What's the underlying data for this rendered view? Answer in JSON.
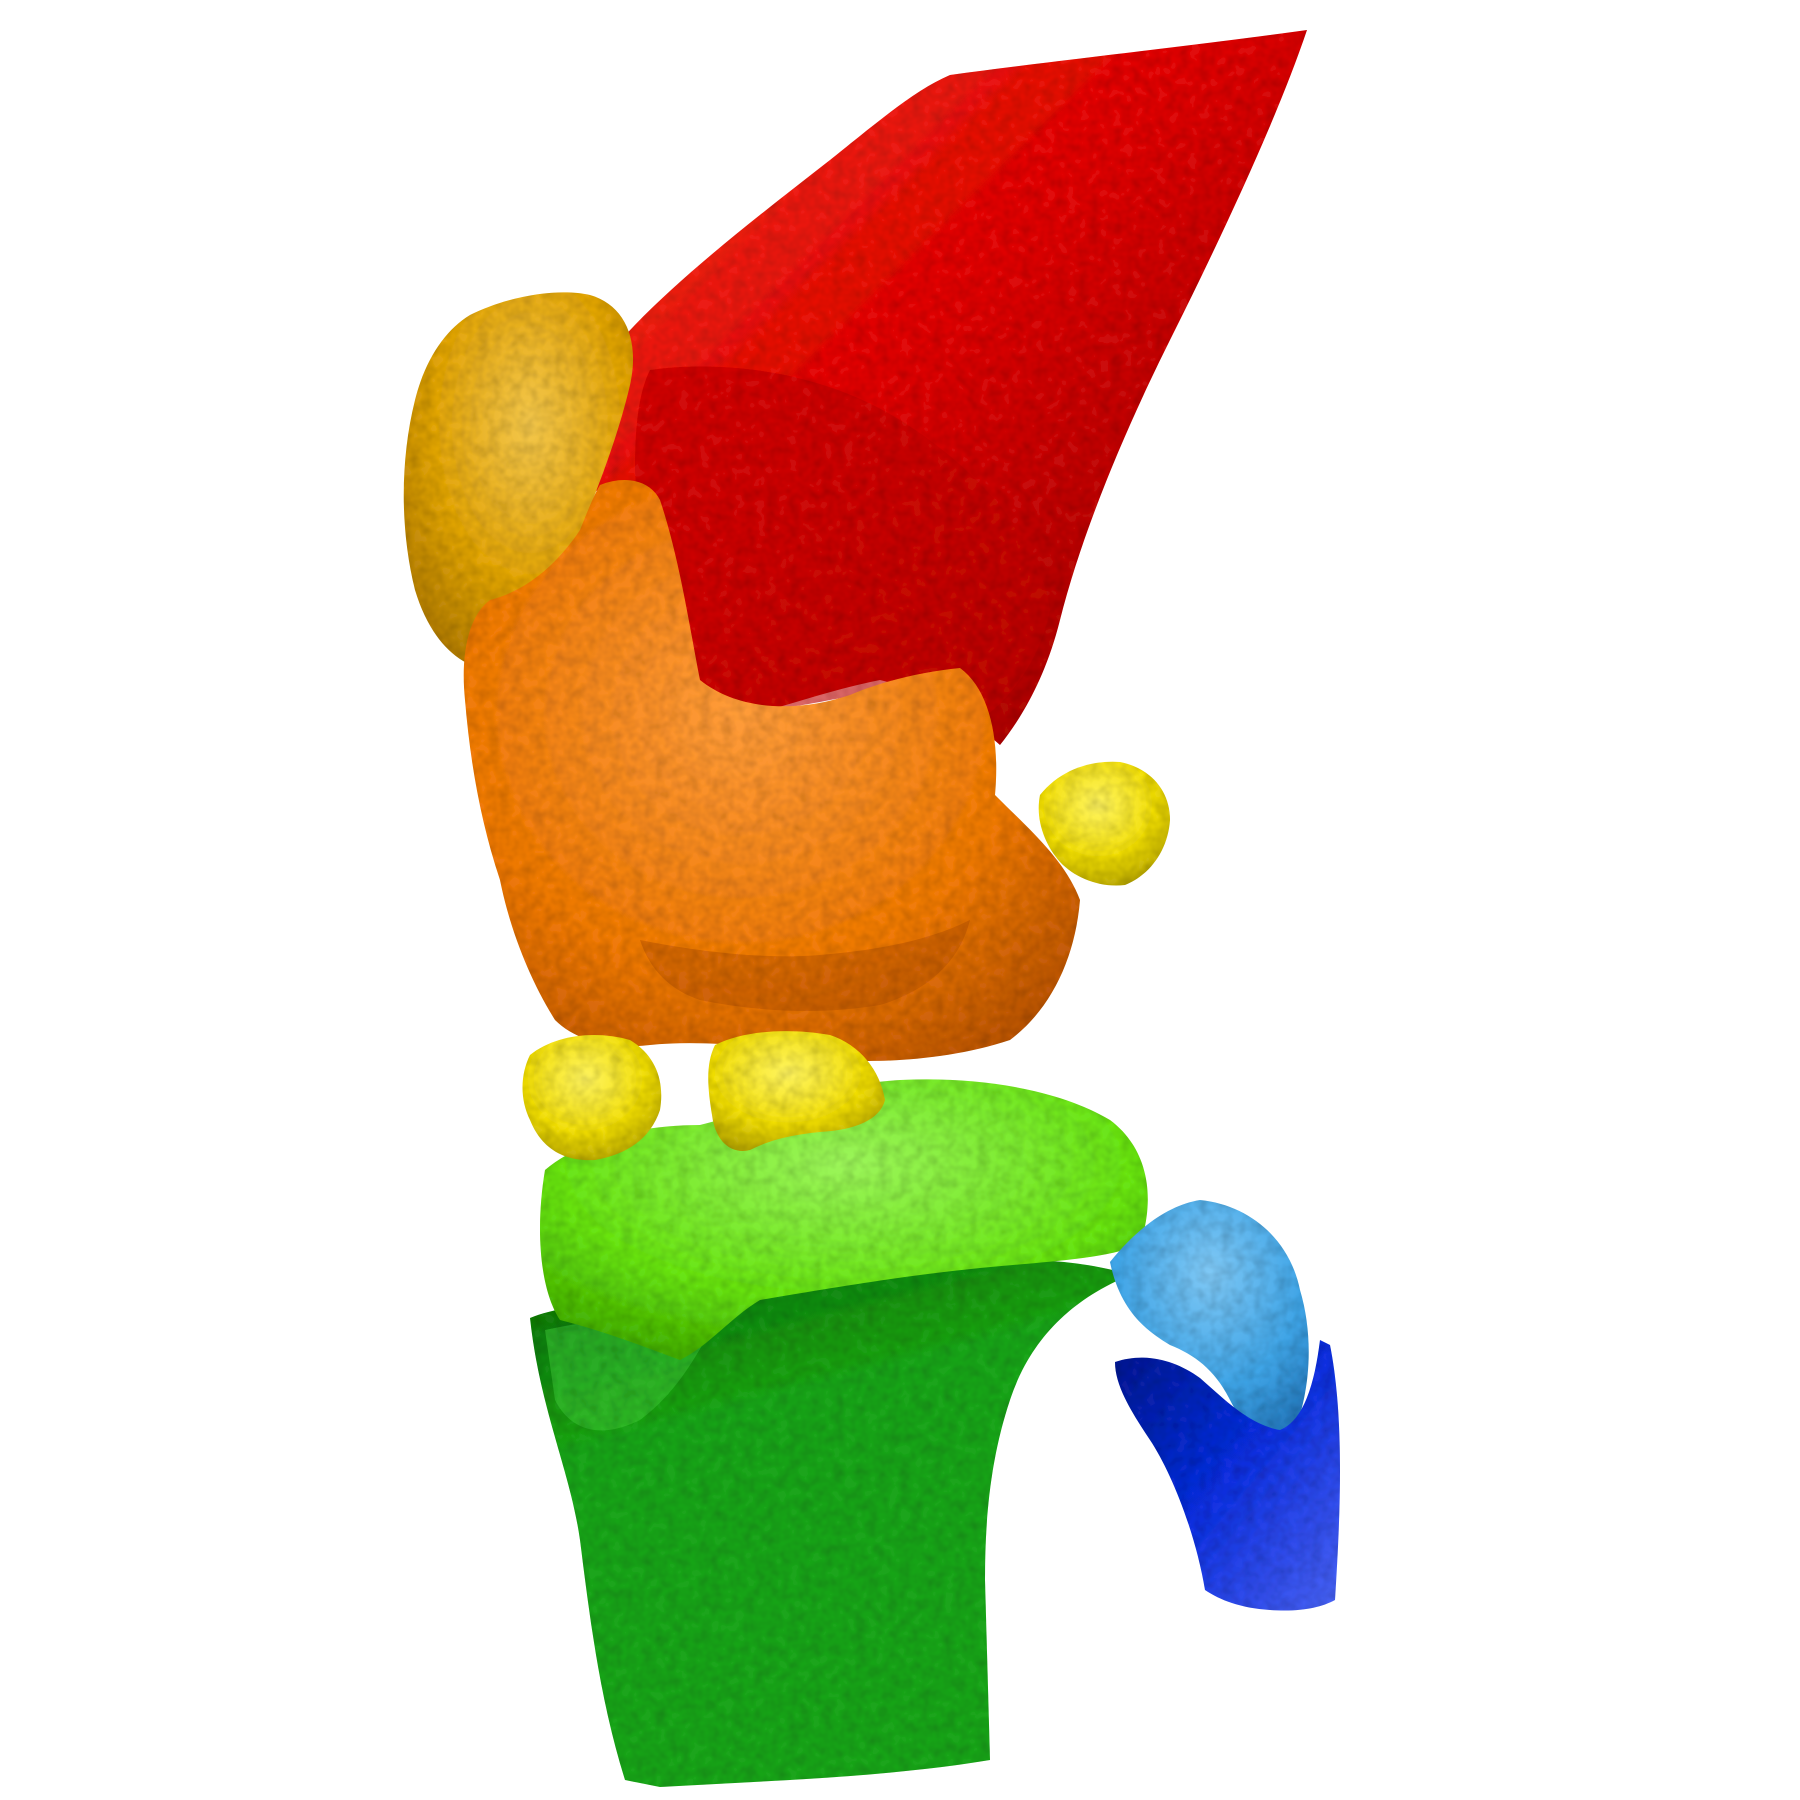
{
  "scene": {
    "background": "#ffffff",
    "structures": [
      {
        "key": "femur",
        "color": "#e00a08",
        "shade": "#8f0505",
        "highlight": "#ff3b2a"
      },
      {
        "key": "patella",
        "color": "#e3a60f",
        "shade": "#a8740a",
        "highlight": "#f3c64a"
      },
      {
        "key": "femoral-cartilage",
        "color": "#f07a0c",
        "shade": "#b24f06",
        "highlight": "#ff9c3a"
      },
      {
        "key": "menisci",
        "color": "#f2df10",
        "shade": "#b3a209",
        "highlight": "#fff45e"
      },
      {
        "key": "tibial-cartilage",
        "color": "#68e416",
        "shade": "#3ba10b",
        "highlight": "#9cf55a"
      },
      {
        "key": "tibia",
        "color": "#1fa51a",
        "shade": "#0f6a0d",
        "highlight": "#3cc634"
      },
      {
        "key": "fibular-cartilage",
        "color": "#3fa4e6",
        "shade": "#2170b4",
        "highlight": "#7fc8f5"
      },
      {
        "key": "fibula",
        "color": "#1230e0",
        "shade": "#0a1a8c",
        "highlight": "#4a64f5"
      }
    ]
  }
}
